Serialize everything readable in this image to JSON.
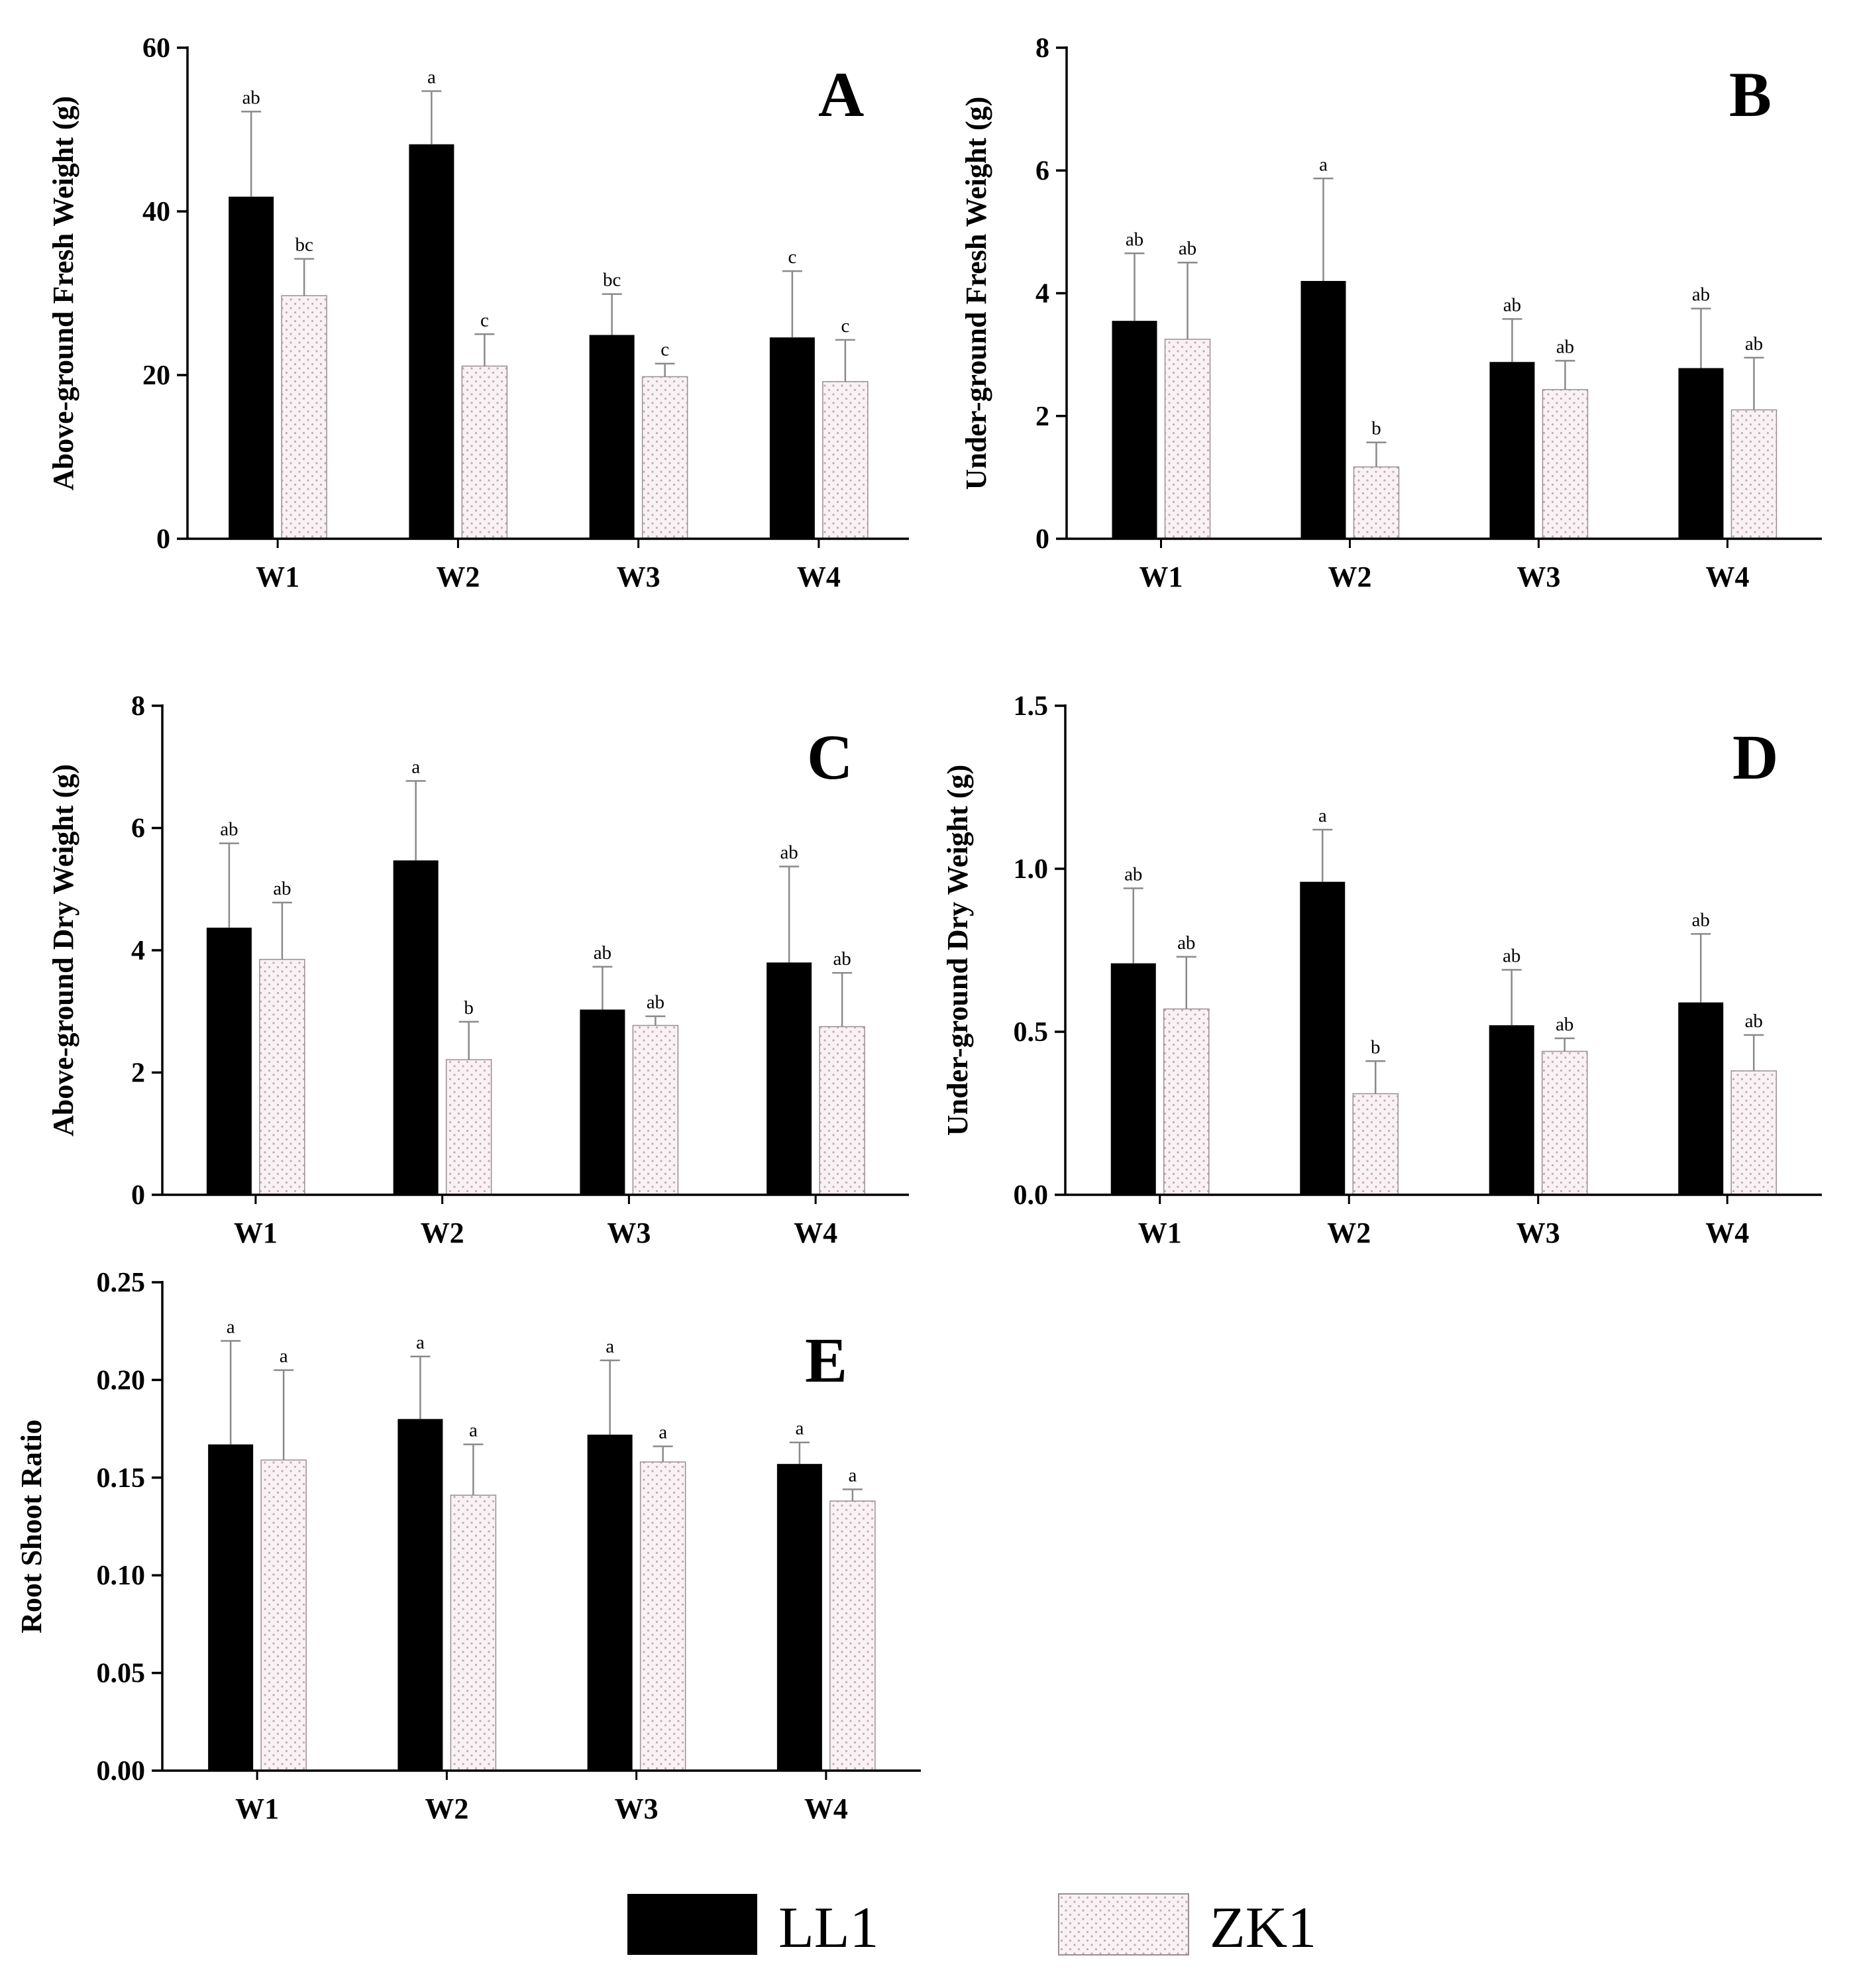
{
  "colors": {
    "LL1": "#000000",
    "ZK1": "#f8f2f4",
    "ZK1_dots": "#c9a8b6",
    "axis": "#000000",
    "error_bar": "#8a8a8a"
  },
  "legend": [
    {
      "name": "LL1",
      "style": "solid-black"
    },
    {
      "name": "ZK1",
      "style": "dotted-pink"
    }
  ],
  "chart_data": [
    {
      "type": "bar",
      "panel": "A",
      "ylabel": "Above-ground Fresh Weight (g)",
      "categories": [
        "W1",
        "W2",
        "W3",
        "W4"
      ],
      "ylim": [
        0,
        60
      ],
      "yticks": [
        0,
        20,
        40,
        60
      ],
      "tick_decimals": 0,
      "series": [
        {
          "name": "LL1",
          "values": [
            41.8,
            48.2,
            24.9,
            24.6
          ],
          "errors": [
            10.4,
            6.5,
            5.0,
            8.1
          ],
          "labels": [
            "ab",
            "a",
            "bc",
            "c"
          ]
        },
        {
          "name": "ZK1",
          "values": [
            29.7,
            21.1,
            19.8,
            19.2
          ],
          "errors": [
            4.5,
            3.9,
            1.6,
            5.1
          ],
          "labels": [
            "bc",
            "c",
            "c",
            "c"
          ]
        }
      ]
    },
    {
      "type": "bar",
      "panel": "B",
      "ylabel": "Under-ground Fresh Weight (g)",
      "categories": [
        "W1",
        "W2",
        "W3",
        "W4"
      ],
      "ylim": [
        0,
        8
      ],
      "yticks": [
        0,
        2,
        4,
        6,
        8
      ],
      "tick_decimals": 0,
      "series": [
        {
          "name": "LL1",
          "values": [
            3.55,
            4.2,
            2.88,
            2.78
          ],
          "errors": [
            1.1,
            1.67,
            0.7,
            0.97
          ],
          "labels": [
            "ab",
            "a",
            "ab",
            "ab"
          ]
        },
        {
          "name": "ZK1",
          "values": [
            3.25,
            1.17,
            2.43,
            2.1
          ],
          "errors": [
            1.25,
            0.4,
            0.47,
            0.85
          ],
          "labels": [
            "ab",
            "b",
            "ab",
            "ab"
          ]
        }
      ]
    },
    {
      "type": "bar",
      "panel": "C",
      "ylabel": "Above-ground Dry Weight (g)",
      "categories": [
        "W1",
        "W2",
        "W3",
        "W4"
      ],
      "ylim": [
        0,
        8
      ],
      "yticks": [
        0,
        2,
        4,
        6,
        8
      ],
      "tick_decimals": 0,
      "series": [
        {
          "name": "LL1",
          "values": [
            4.37,
            5.47,
            3.03,
            3.8
          ],
          "errors": [
            1.38,
            1.3,
            0.7,
            1.57
          ],
          "labels": [
            "ab",
            "a",
            "ab",
            "ab"
          ]
        },
        {
          "name": "ZK1",
          "values": [
            3.85,
            2.21,
            2.77,
            2.75
          ],
          "errors": [
            0.93,
            0.62,
            0.15,
            0.88
          ],
          "labels": [
            "ab",
            "b",
            "ab",
            "ab"
          ]
        }
      ]
    },
    {
      "type": "bar",
      "panel": "D",
      "ylabel": "Under-ground Dry Weight (g)",
      "categories": [
        "W1",
        "W2",
        "W3",
        "W4"
      ],
      "ylim": [
        0,
        1.5
      ],
      "yticks": [
        0,
        0.5,
        1.0,
        1.5
      ],
      "tick_decimals": 1,
      "series": [
        {
          "name": "LL1",
          "values": [
            0.71,
            0.96,
            0.52,
            0.59
          ],
          "errors": [
            0.23,
            0.16,
            0.17,
            0.21
          ],
          "labels": [
            "ab",
            "a",
            "ab",
            "ab"
          ]
        },
        {
          "name": "ZK1",
          "values": [
            0.57,
            0.31,
            0.44,
            0.38
          ],
          "errors": [
            0.16,
            0.1,
            0.04,
            0.11
          ],
          "labels": [
            "ab",
            "b",
            "ab",
            "ab"
          ]
        }
      ]
    },
    {
      "type": "bar",
      "panel": "E",
      "ylabel": "Root Shoot Ratio",
      "categories": [
        "W1",
        "W2",
        "W3",
        "W4"
      ],
      "ylim": [
        0,
        0.25
      ],
      "yticks": [
        0,
        0.05,
        0.1,
        0.15,
        0.2,
        0.25
      ],
      "tick_decimals": 2,
      "series": [
        {
          "name": "LL1",
          "values": [
            0.167,
            0.18,
            0.172,
            0.157
          ],
          "errors": [
            0.053,
            0.032,
            0.038,
            0.011
          ],
          "labels": [
            "a",
            "a",
            "a",
            "a"
          ]
        },
        {
          "name": "ZK1",
          "values": [
            0.159,
            0.141,
            0.158,
            0.138
          ],
          "errors": [
            0.046,
            0.026,
            0.008,
            0.006
          ],
          "labels": [
            "a",
            "a",
            "a",
            "a"
          ]
        }
      ]
    }
  ]
}
